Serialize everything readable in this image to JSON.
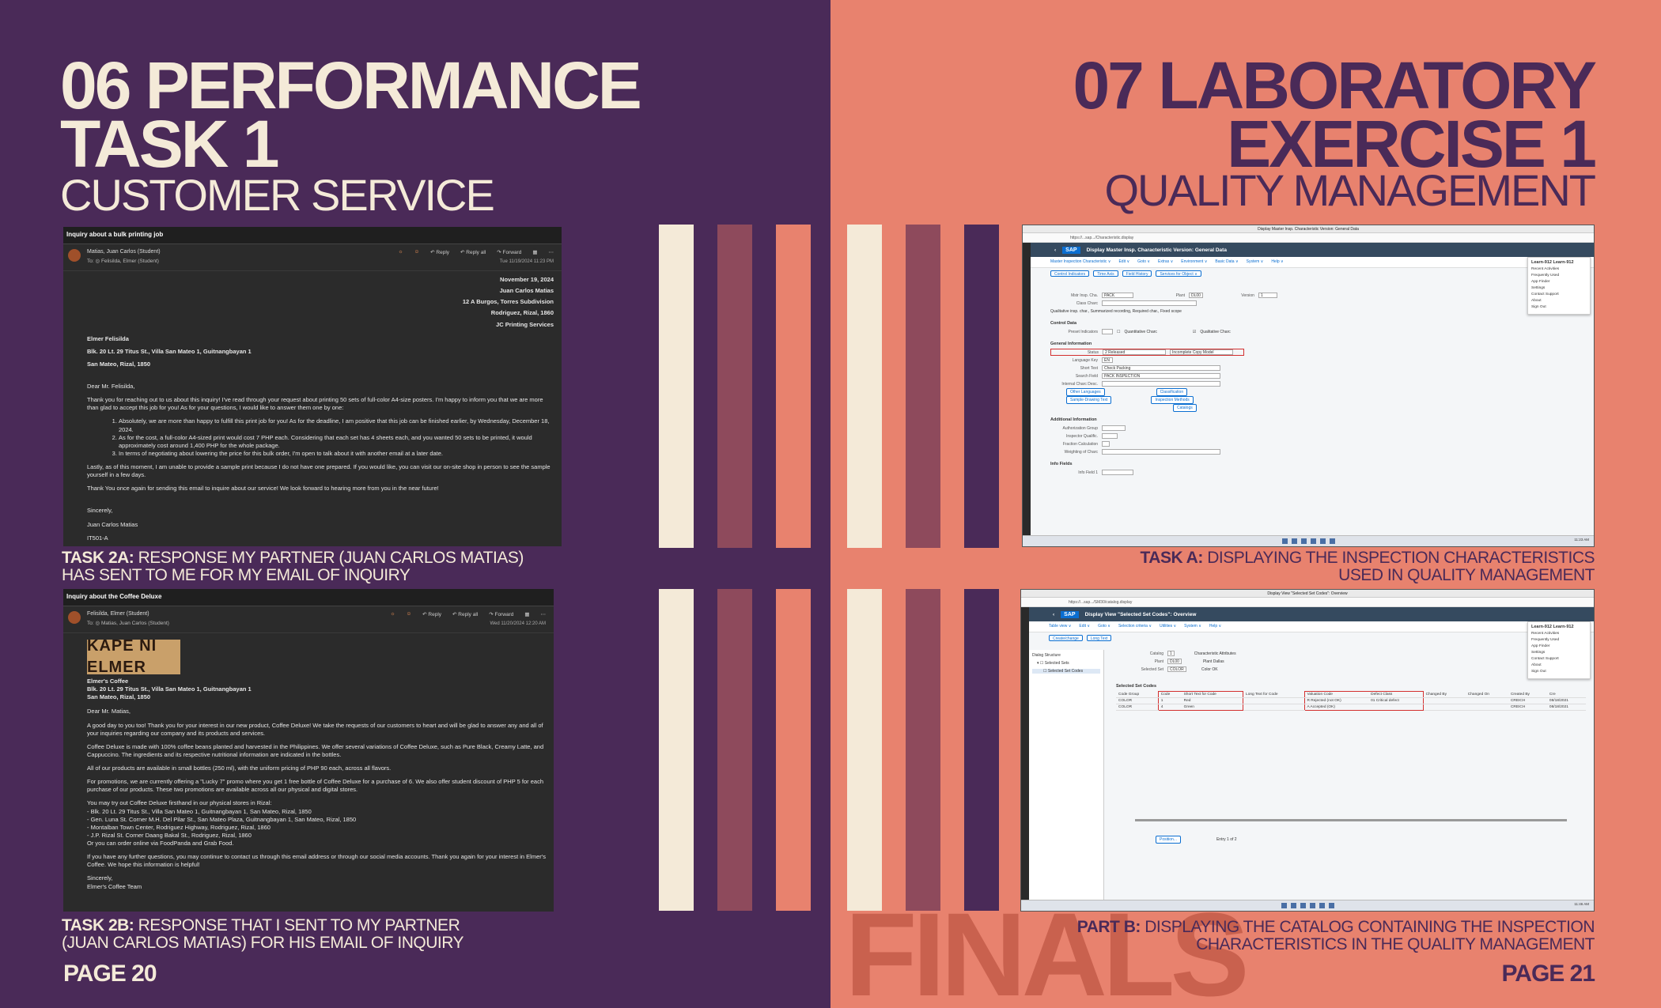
{
  "left": {
    "title_line1": "06 PERFORMANCE",
    "title_line2": "TASK 1",
    "subtitle": "CUSTOMER SERVICE",
    "caption_a_bold": "TASK 2A:",
    "caption_a_line1": "RESPONSE MY PARTNER (JUAN CARLOS MATIAS)",
    "caption_a_line2": "HAS SENT TO ME FOR MY EMAIL OF INQUIRY",
    "caption_b_bold": "TASK 2B:",
    "caption_b_line1": "RESPONSE THAT I SENT TO MY PARTNER",
    "caption_b_line2": "(JUAN CARLOS MATIAS) FOR HIS EMAIL OF INQUIRY",
    "page": "PAGE 20"
  },
  "right": {
    "title_line1": "07 LABORATORY",
    "title_line2": "EXERCISE 1",
    "subtitle": "QUALITY MANAGEMENT",
    "caption_a_bold": "TASK A:",
    "caption_a_line1": "DISPLAYING THE INSPECTION CHARACTERISTICS",
    "caption_a_line2": "USED IN QUALITY MANAGEMENT",
    "caption_b_bold": "PART B:",
    "caption_b_line1": "DISPLAYING THE CATALOG CONTAINING THE INSPECTION",
    "caption_b_line2": "CHARACTERISTICS IN THE QUALITY MANAGEMENT",
    "page": "PAGE 21",
    "watermark": "FINALS"
  },
  "colors": {
    "left_bg": "#4a2a58",
    "right_bg": "#e8826e",
    "cream": "#f4ead8",
    "mauve": "#8e4a5c",
    "salmon": "#e8826e",
    "purple": "#4a2a58"
  },
  "email1": {
    "subject": "Inquiry about a bulk printing job",
    "sender": "Matias, Juan Carlos (Student)",
    "to": "To: ◎ Felisilda, Elmer (Student)",
    "reply": "Reply",
    "reply_all": "Reply all",
    "forward": "Forward",
    "date": "Tue 11/19/2024 11:23 PM",
    "addr_date": "November 19, 2024",
    "addr_name": "Juan Carlos Matias",
    "addr_street": "12 A Burgos, Torres Subdivision",
    "addr_city": "Rodriguez, Rizal, 1860",
    "addr_company": "JC Printing Services",
    "to_name": "Elmer Felisilda",
    "to_street": "Blk. 20 Lt. 29 Titus St., Villa San Mateo 1, Guitnangbayan 1",
    "to_city": "San Mateo, Rizal, 1850",
    "greeting": "Dear Mr. Felisilda,",
    "para1": "Thank you for reaching out to us about this inquiry! I've read through your request about printing 50 sets of full-color A4-size posters. I'm happy to inform you that we are more than glad to accept this job for you! As for your questions, I would like to answer them one by one:",
    "item1": "Absolutely, we are more than happy to fulfill this print job for you! As for the deadline, I am positive that this job can be finished earlier, by Wednesday, December 18, 2024.",
    "item2": "As for the cost, a full-color A4-sized print would cost 7 PHP each. Considering that each set has 4 sheets each, and you wanted 50 sets to be printed, it would approximately cost around 1,400 PHP for the whole package.",
    "item3": "In terms of negotiating about lowering the price for this bulk order, I'm open to talk about it with another email at a later date.",
    "para2": "Lastly, as of this moment, I am unable to provide a sample print because I do not have one prepared. If you would like, you can visit our on-site shop in person to see the sample yourself in a few days.",
    "para3": "Thank You once again for sending this email to inquire about our service! We look forward to hearing more from you in the near future!",
    "closing": "Sincerely,",
    "sign_name": "Juan Carlos Matias",
    "sign_code": "IT501-A"
  },
  "email2": {
    "subject": "Inquiry about the Coffee Deluxe",
    "sender": "Felisilda, Elmer (Student)",
    "to": "To: ◎ Matias, Juan Carlos (Student)",
    "reply": "Reply",
    "reply_all": "Reply all",
    "forward": "Forward",
    "date": "Wed 11/20/2024 12:20 AM",
    "logo": "KAPE NI ELMER",
    "company": "Elmer's Coffee",
    "street": "Blk. 20 Lt. 29 Titus St., Villa San Mateo 1, Guitnangbayan 1",
    "city": "San Mateo, Rizal, 1850",
    "greeting": "Dear Mr. Matias,",
    "para1": "A good day to you too! Thank you for your interest in our new product, Coffee Deluxe! We take the requests of our customers to heart and will be glad to answer any and all of your inquiries regarding our company and its products and services.",
    "para2": "Coffee Deluxe is made with 100% coffee beans planted and harvested in the Philippines. We offer several variations of Coffee Deluxe, such as Pure Black, Creamy Latte, and Cappuccino. The ingredients and its respective nutritional information are indicated in the bottles.",
    "para3": "All of our products are available in small bottles (250 ml), with the uniform pricing of PHP 90 each, across all flavors.",
    "para4": "For promotions, we are currently offering a \"Lucky 7\" promo where you get 1 free bottle of Coffee Deluxe for a purchase of 6. We also offer student discount of PHP 5 for each purchase of our products. These two promotions are available across all our physical and digital stores.",
    "stores_intro": "You may try out Coffee Deluxe firsthand in our physical stores in Rizal:",
    "store1": "- Blk. 20 Lt. 29 Titus St., Villa San Mateo 1, Guitnangbayan 1, San Mateo, Rizal, 1850",
    "store2": "- Gen. Luna St. Corner M.H. Del Pilar St., San Mateo Plaza, Guitnangbayan 1, San Mateo, Rizal, 1850",
    "store3": "- Montalban Town Center, Rodriguez Highway, Rodriguez, Rizal, 1860",
    "store4": "- J.P. Rizal St. Corner Daang Bakal St., Rodriguez, Rizal, 1860",
    "store5": "Or you can order online via FoodPanda and Grab Food.",
    "para5": "If you have any further questions, you may continue to contact us through this email address or through our social media accounts. Thank you again for your interest in Elmer's Coffee. We hope this information is helpful!",
    "closing": "Sincerely,",
    "sign": "Elmer's Coffee Team"
  },
  "sap1": {
    "window_title": "Display Master Insp. Characteristic Version: General Data",
    "url": "https://...sap.../Characteristic.display",
    "app_title": "Display Master Insp. Characteristic Version: General Data",
    "menu": [
      "Master Inspection Characteristic ∨",
      "Edit ∨",
      "Goto ∨",
      "Extras ∨",
      "Environment ∨",
      "Basic Data ∨",
      "System ∨",
      "Help ∨"
    ],
    "buttons": [
      "Control Indicators",
      "Time Axis",
      "Field History",
      "Services for Object ∨"
    ],
    "mst_label": "Mstr Insp. Cha.",
    "mst_value": "PACK",
    "plant_label": "Plant",
    "plant_value": "DL00",
    "version_label": "Version",
    "version_value": "1",
    "class_label": "Class Charc",
    "type_note": "Qualitative insp. char., Summarized recording, Required char., Fixed scope",
    "control_data": "Control Data",
    "preset_label": "Preset Indicators",
    "quant_label": "Quantitative Charc",
    "qual_label": "Qualitative Charc",
    "general_info": "General Information",
    "status_label": "Status",
    "status_value": "2 Released",
    "copy_value": "Incomplete Copy Model",
    "lang_label": "Language Key",
    "lang_value": "EN",
    "short_label": "Short Text",
    "short_value": "Check Packing",
    "search_label": "Search Field",
    "search_value": "PACK INSPECTION",
    "internal_label": "Internal Charc Desc.",
    "other_lang": "Other Languages",
    "classification": "Classification",
    "sample_text": "Sample-Drawing Text",
    "insp_methods": "Inspection Methods",
    "catalogs": "Catalogs",
    "additional_info": "Additional Information",
    "auth_label": "Authorization Group",
    "qual_insp_label": "Inspector Qualific.",
    "fraction_label": "Fraction Calculation",
    "weighting_label": "Weighting of Charc",
    "info_fields": "Info Fields",
    "info_field1": "Info Field 1",
    "user": "Learn-912 Learn-912",
    "user_menu": [
      "Recent Activities",
      "Frequently Used",
      "App Finder",
      "Settings",
      "Contact Support",
      "About",
      "Sign Out"
    ],
    "time": "11:23 AM"
  },
  "sap2": {
    "window_title": "Display View \"Selected Set Codes\": Overview",
    "url": "https://...sap.../SM30/catalog.display",
    "app_title": "Display View \"Selected Set Codes\": Overview",
    "menu": [
      "Table view ∨",
      "Edit ∨",
      "Goto ∨",
      "Selection criteria ∨",
      "Utilities ∨",
      "System ∨",
      "Help ∨"
    ],
    "buttons": [
      "Create/change",
      "Long Text"
    ],
    "tree_title": "Dialog Structure",
    "tree_item1": "Selected Sets",
    "tree_item2": "Selected Set Codes",
    "catalog_label": "Catalog",
    "catalog_value": "1",
    "plant_label": "Plant",
    "plant_value": "DL00",
    "sel_set_label": "Selected Set",
    "sel_set_value": "COLOR",
    "charc_attr": "Characteristic Attributes",
    "plant_desc": "Plant Dallas",
    "color_ok": "Color OK",
    "table_title": "Selected Set Codes",
    "columns": [
      "Code Group",
      "Code",
      "Short Text for Code",
      "Long Text for Code",
      "Valuation Code",
      "Defect Class",
      "Changed By",
      "Changed On",
      "Created By",
      "Cre"
    ],
    "rows": [
      [
        "COLOR",
        "1",
        "Red",
        "",
        "R Rejected (not OK)",
        "01 Critical defect",
        "",
        "",
        "CREICH",
        "08/18/2021"
      ],
      [
        "COLOR",
        "4",
        "Green",
        "",
        "A Accepted (OK)",
        "",
        "",
        "",
        "CREICH",
        "08/18/2021"
      ]
    ],
    "position_btn": "Position...",
    "entry_count": "Entry 1 of 2",
    "user": "Learn-912 Learn-912",
    "user_menu": [
      "Recent Activities",
      "Frequently Used",
      "App Finder",
      "Settings",
      "Contact Support",
      "About",
      "Sign Out"
    ],
    "time": "11:46 AM"
  }
}
